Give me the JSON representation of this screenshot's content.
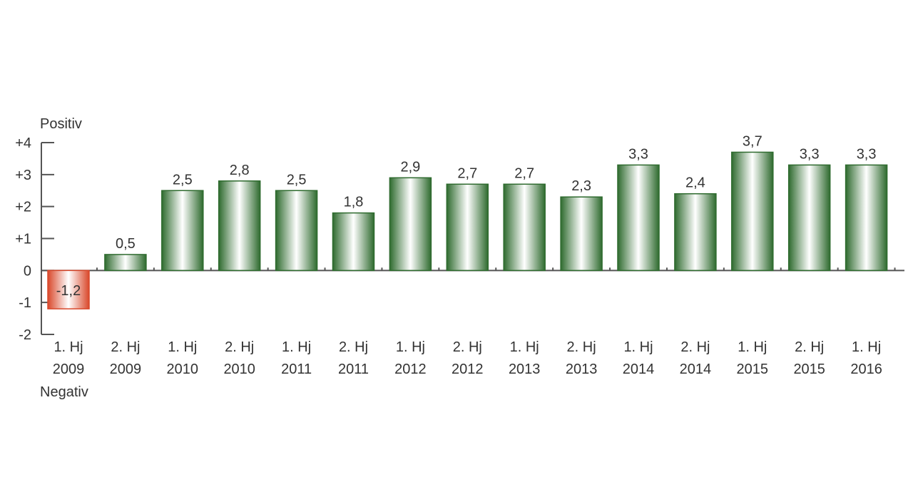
{
  "chart_data": {
    "type": "bar",
    "top_label": "Positiv",
    "bottom_label": "Negativ",
    "categories": [
      [
        "1. Hj",
        "2009"
      ],
      [
        "2. Hj",
        "2009"
      ],
      [
        "1. Hj",
        "2010"
      ],
      [
        "2. Hj",
        "2010"
      ],
      [
        "1. Hj",
        "2011"
      ],
      [
        "2. Hj",
        "2011"
      ],
      [
        "1. Hj",
        "2012"
      ],
      [
        "2. Hj",
        "2012"
      ],
      [
        "1. Hj",
        "2013"
      ],
      [
        "2. Hj",
        "2013"
      ],
      [
        "1. Hj",
        "2014"
      ],
      [
        "2. Hj",
        "2014"
      ],
      [
        "1. Hj",
        "2015"
      ],
      [
        "2. Hj",
        "2015"
      ],
      [
        "1. Hj",
        "2016"
      ]
    ],
    "values": [
      -1.2,
      0.5,
      2.5,
      2.8,
      2.5,
      1.8,
      2.9,
      2.7,
      2.7,
      2.3,
      3.3,
      2.4,
      3.7,
      3.3,
      3.3
    ],
    "value_labels": [
      "-1,2",
      "0,5",
      "2,5",
      "2,8",
      "2,5",
      "1,8",
      "2,9",
      "2,7",
      "2,7",
      "2,3",
      "3,3",
      "2,4",
      "3,7",
      "3,3",
      "3,3"
    ],
    "yticks": [
      4,
      3,
      2,
      1,
      0,
      -1,
      -2
    ],
    "ytick_labels": [
      "+4",
      "+3",
      "+2",
      "+1",
      "0",
      "-1",
      "-2"
    ],
    "ylim": [
      -2,
      4
    ],
    "colors": {
      "positive": "#2f6b2f",
      "positive_highlight": "#ffffff",
      "negative": "#d9482b",
      "negative_highlight": "#ffffff",
      "axis": "#555555",
      "text": "#333333"
    },
    "grid": false,
    "legend": "none"
  }
}
